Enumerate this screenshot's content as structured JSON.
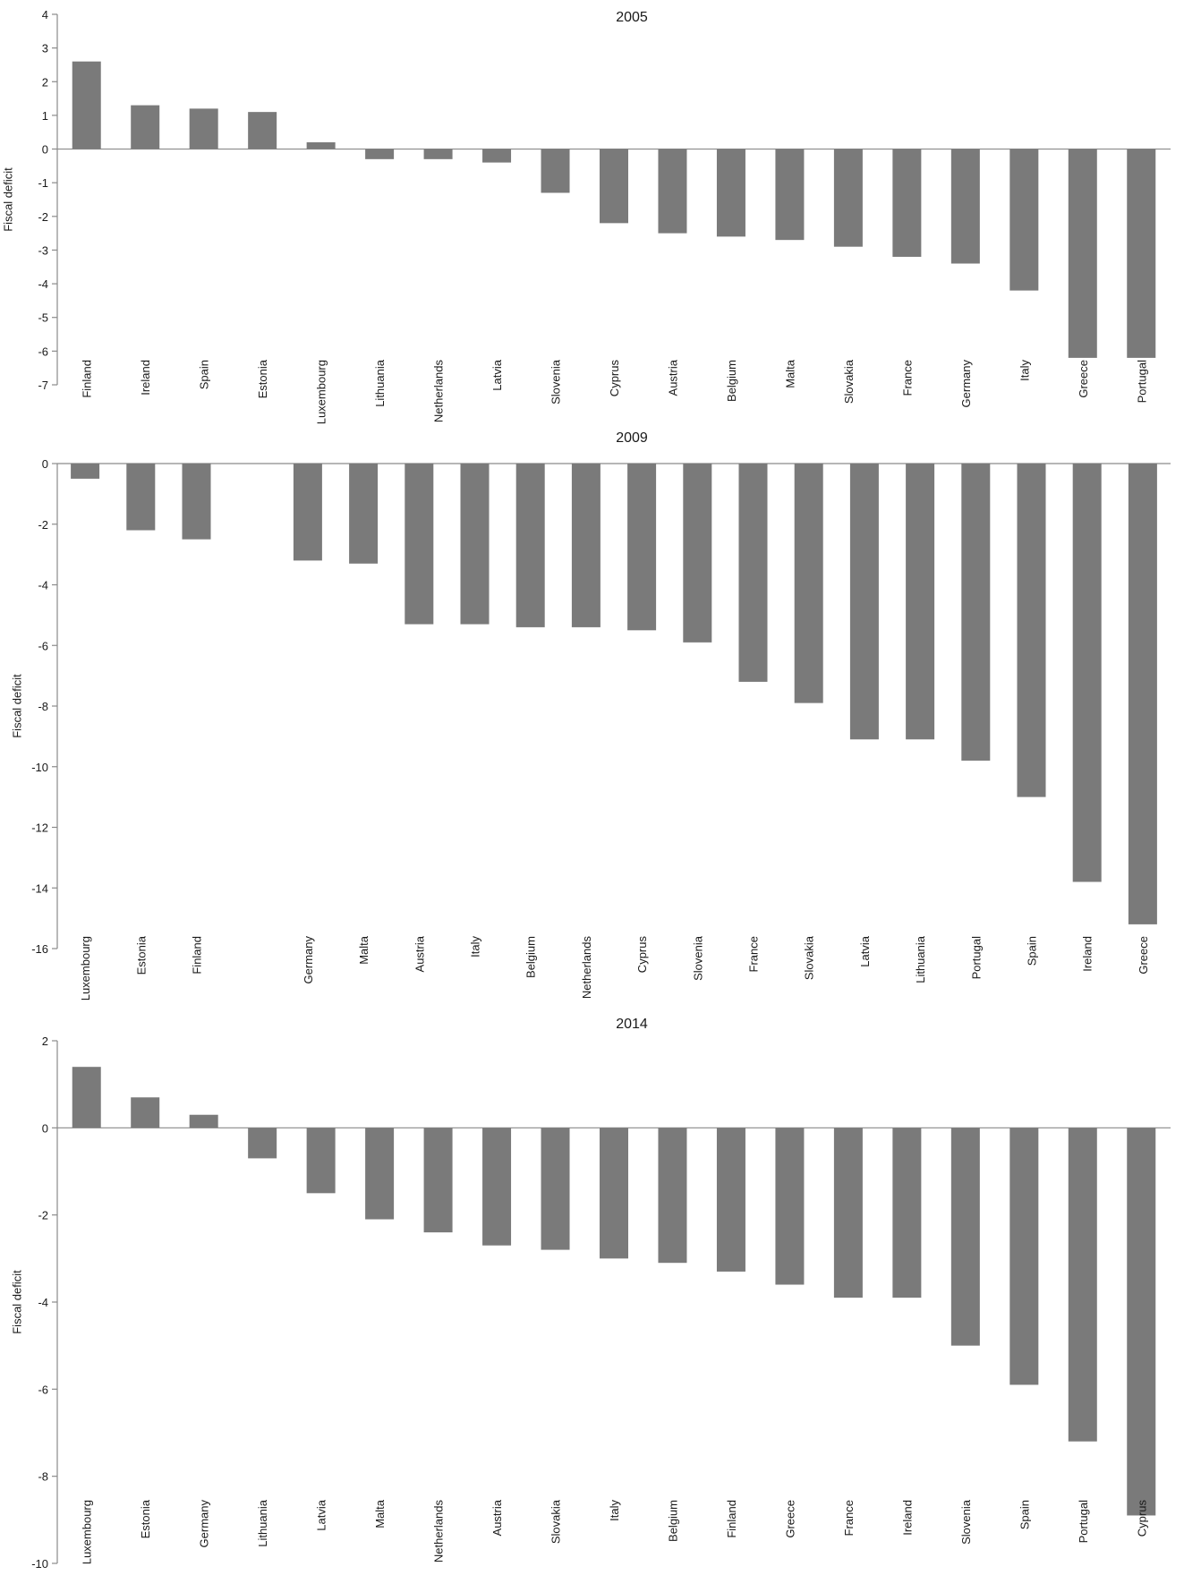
{
  "chart_data": [
    {
      "type": "bar",
      "title": "2005",
      "ylabel": "Fiscal deficit",
      "ylim": [
        -7,
        4
      ],
      "yticks": [
        4,
        3,
        2,
        1,
        0,
        -1,
        -2,
        -3,
        -4,
        -5,
        -6,
        -7
      ],
      "grid": false,
      "categories": [
        "Finland",
        "Ireland",
        "Spain",
        "Estonia",
        "Luxembourg",
        "Lithuania",
        "Netherlands",
        "Latvia",
        "Slovenia",
        "Cyprus",
        "Austria",
        "Belgium",
        "Malta",
        "Slovakia",
        "France",
        "Germany",
        "Italy",
        "Greece",
        "Portugal"
      ],
      "values": [
        2.6,
        1.3,
        1.2,
        1.1,
        0.2,
        -0.3,
        -0.3,
        -0.4,
        -1.3,
        -2.2,
        -2.5,
        -2.6,
        -2.7,
        -2.9,
        -3.2,
        -3.4,
        -4.2,
        -6.2,
        -6.2
      ]
    },
    {
      "type": "bar",
      "title": "2009",
      "ylabel": "Fiscal deficit",
      "ylim": [
        -16,
        0
      ],
      "yticks": [
        0,
        -2,
        -4,
        -6,
        -8,
        -10,
        -12,
        -14,
        -16
      ],
      "grid": false,
      "categories": [
        "Luxembourg",
        "Estonia",
        "Finland",
        "",
        "Germany",
        "Malta",
        "Austria",
        "Italy",
        "Belgium",
        "Netherlands",
        "Cyprus",
        "Slovenia",
        "France",
        "Slovakia",
        "Latvia",
        "Lithuania",
        "Portugal",
        "Spain",
        "Ireland",
        "Greece"
      ],
      "values": [
        -0.5,
        -2.2,
        -2.5,
        null,
        -3.2,
        -3.3,
        -5.3,
        -5.3,
        -5.4,
        -5.4,
        -5.5,
        -5.9,
        -7.2,
        -7.9,
        -9.1,
        -9.1,
        -9.8,
        -11.0,
        -13.8,
        -15.2
      ]
    },
    {
      "type": "bar",
      "title": "2014",
      "ylabel": "Fiscal deficit",
      "ylim": [
        -10,
        2
      ],
      "yticks": [
        2,
        0,
        -2,
        -4,
        -6,
        -8,
        -10
      ],
      "grid": false,
      "categories": [
        "Luxembourg",
        "Estonia",
        "Germany",
        "Lithuania",
        "Latvia",
        "Malta",
        "Netherlands",
        "Austria",
        "Slovakia",
        "Italy",
        "Belgium",
        "Finland",
        "Greece",
        "France",
        "Ireland",
        "Slovenia",
        "Spain",
        "Portugal",
        "Cyprus"
      ],
      "values": [
        1.4,
        0.7,
        0.3,
        -0.7,
        -1.5,
        -2.1,
        -2.4,
        -2.7,
        -2.8,
        -3.0,
        -3.1,
        -3.3,
        -3.6,
        -3.9,
        -3.9,
        -5.0,
        -5.9,
        -7.2,
        -8.9
      ]
    }
  ]
}
